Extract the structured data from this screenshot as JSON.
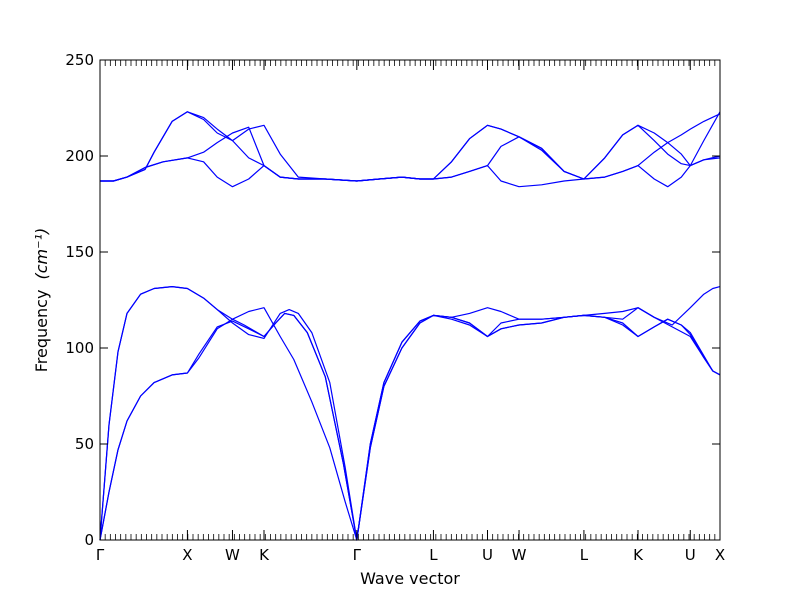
{
  "chart_data": {
    "type": "line",
    "xlabel": "Wave vector",
    "ylabel": "Frequency",
    "ylabel_unit": "(cm⁻¹)",
    "ylim": [
      0,
      250
    ],
    "yticks": [
      0,
      50,
      100,
      150,
      200,
      250
    ],
    "xlim": [
      0,
      6.88
    ],
    "x_high_symmetry": [
      {
        "label": "Γ",
        "x": 0.0
      },
      {
        "label": "X",
        "x": 0.97
      },
      {
        "label": "W",
        "x": 1.47
      },
      {
        "label": "K",
        "x": 1.82
      },
      {
        "label": "Γ",
        "x": 2.85
      },
      {
        "label": "L",
        "x": 3.7
      },
      {
        "label": "U",
        "x": 4.3
      },
      {
        "label": "W",
        "x": 4.65
      },
      {
        "label": "L",
        "x": 5.37
      },
      {
        "label": "K",
        "x": 5.97
      },
      {
        "label": "U",
        "x": 6.55
      },
      {
        "label": "X",
        "x": 6.88
      }
    ],
    "color": "#0000ff",
    "grid": false,
    "series": [
      {
        "points": [
          [
            0,
            0
          ],
          [
            0.1,
            25
          ],
          [
            0.2,
            47
          ],
          [
            0.3,
            62
          ],
          [
            0.45,
            75
          ],
          [
            0.6,
            82
          ],
          [
            0.8,
            86
          ],
          [
            0.97,
            87
          ],
          [
            1.1,
            95
          ],
          [
            1.3,
            110
          ],
          [
            1.47,
            115
          ],
          [
            1.6,
            112
          ],
          [
            1.82,
            106
          ],
          [
            1.95,
            113
          ],
          [
            2.05,
            118
          ],
          [
            2.15,
            117
          ],
          [
            2.3,
            108
          ],
          [
            2.5,
            85
          ],
          [
            2.7,
            40
          ],
          [
            2.85,
            0
          ],
          [
            3.0,
            48
          ],
          [
            3.15,
            80
          ],
          [
            3.35,
            100
          ],
          [
            3.55,
            113
          ],
          [
            3.7,
            117
          ],
          [
            3.9,
            116
          ],
          [
            4.1,
            113
          ],
          [
            4.3,
            106
          ],
          [
            4.45,
            110
          ],
          [
            4.65,
            112
          ],
          [
            4.9,
            113
          ],
          [
            5.15,
            116
          ],
          [
            5.37,
            117
          ],
          [
            5.6,
            116
          ],
          [
            5.8,
            112
          ],
          [
            5.97,
            106
          ],
          [
            6.15,
            111
          ],
          [
            6.3,
            115
          ],
          [
            6.45,
            112
          ],
          [
            6.55,
            108
          ],
          [
            6.7,
            96
          ],
          [
            6.8,
            88
          ],
          [
            6.88,
            86
          ]
        ]
      },
      {
        "points": [
          [
            0,
            0
          ],
          [
            0.1,
            25
          ],
          [
            0.2,
            47
          ],
          [
            0.3,
            62
          ],
          [
            0.45,
            75
          ],
          [
            0.6,
            82
          ],
          [
            0.8,
            86
          ],
          [
            0.97,
            87
          ],
          [
            1.1,
            97
          ],
          [
            1.3,
            111
          ],
          [
            1.47,
            114
          ],
          [
            1.65,
            110
          ],
          [
            1.82,
            106
          ],
          [
            1.95,
            113
          ],
          [
            2.05,
            118
          ],
          [
            2.15,
            117
          ],
          [
            2.3,
            108
          ],
          [
            2.5,
            85
          ],
          [
            2.7,
            40
          ],
          [
            2.85,
            0
          ],
          [
            3.0,
            48
          ],
          [
            3.15,
            80
          ],
          [
            3.35,
            100
          ],
          [
            3.55,
            113
          ],
          [
            3.7,
            117
          ],
          [
            3.9,
            116
          ],
          [
            4.1,
            113
          ],
          [
            4.3,
            106
          ],
          [
            4.45,
            113
          ],
          [
            4.65,
            115
          ],
          [
            4.9,
            115
          ],
          [
            5.15,
            116
          ],
          [
            5.37,
            117
          ],
          [
            5.6,
            116
          ],
          [
            5.8,
            113
          ],
          [
            5.97,
            106
          ],
          [
            6.15,
            111
          ],
          [
            6.3,
            115
          ],
          [
            6.45,
            112
          ],
          [
            6.55,
            107
          ],
          [
            6.7,
            95
          ],
          [
            6.8,
            88
          ],
          [
            6.88,
            86
          ]
        ]
      },
      {
        "points": [
          [
            0,
            0
          ],
          [
            0.05,
            30
          ],
          [
            0.1,
            60
          ],
          [
            0.2,
            98
          ],
          [
            0.3,
            118
          ],
          [
            0.45,
            128
          ],
          [
            0.6,
            131
          ],
          [
            0.8,
            132
          ],
          [
            0.97,
            131
          ],
          [
            1.15,
            126
          ],
          [
            1.3,
            120
          ],
          [
            1.47,
            113
          ],
          [
            1.65,
            107
          ],
          [
            1.82,
            105
          ],
          [
            2.0,
            118
          ],
          [
            2.1,
            120
          ],
          [
            2.2,
            118
          ],
          [
            2.35,
            108
          ],
          [
            2.55,
            82
          ],
          [
            2.72,
            38
          ],
          [
            2.85,
            0
          ],
          [
            3.0,
            50
          ],
          [
            3.15,
            82
          ],
          [
            3.35,
            103
          ],
          [
            3.55,
            114
          ],
          [
            3.7,
            117
          ],
          [
            3.9,
            116
          ],
          [
            4.1,
            118
          ],
          [
            4.3,
            121
          ],
          [
            4.45,
            119
          ],
          [
            4.65,
            115
          ],
          [
            4.9,
            115
          ],
          [
            5.15,
            116
          ],
          [
            5.37,
            117
          ],
          [
            5.6,
            118
          ],
          [
            5.8,
            119
          ],
          [
            5.97,
            121
          ],
          [
            6.15,
            116
          ],
          [
            6.35,
            112
          ],
          [
            6.55,
            121
          ],
          [
            6.7,
            128
          ],
          [
            6.8,
            131
          ],
          [
            6.88,
            132
          ]
        ]
      },
      {
        "points": [
          [
            0,
            0
          ],
          [
            0.05,
            30
          ],
          [
            0.1,
            60
          ],
          [
            0.2,
            98
          ],
          [
            0.3,
            118
          ],
          [
            0.45,
            128
          ],
          [
            0.6,
            131
          ],
          [
            0.8,
            132
          ],
          [
            0.97,
            131
          ],
          [
            1.15,
            126
          ],
          [
            1.3,
            120
          ],
          [
            1.47,
            115
          ],
          [
            1.65,
            119
          ],
          [
            1.82,
            121
          ],
          [
            2.0,
            106
          ],
          [
            2.15,
            94
          ],
          [
            2.35,
            72
          ],
          [
            2.55,
            48
          ],
          [
            2.72,
            20
          ],
          [
            2.85,
            0
          ],
          [
            3.0,
            50
          ],
          [
            3.15,
            82
          ],
          [
            3.35,
            103
          ],
          [
            3.55,
            114
          ],
          [
            3.7,
            117
          ],
          [
            3.9,
            115
          ],
          [
            4.1,
            112
          ],
          [
            4.3,
            106
          ],
          [
            4.45,
            110
          ],
          [
            4.65,
            112
          ],
          [
            4.9,
            113
          ],
          [
            5.15,
            116
          ],
          [
            5.37,
            117
          ],
          [
            5.6,
            116
          ],
          [
            5.8,
            115
          ],
          [
            5.97,
            121
          ],
          [
            6.15,
            116
          ],
          [
            6.35,
            111
          ],
          [
            6.55,
            106
          ],
          [
            6.7,
            95
          ],
          [
            6.8,
            88
          ],
          [
            6.88,
            86
          ]
        ]
      },
      {
        "points": [
          [
            0,
            187
          ],
          [
            0.15,
            187
          ],
          [
            0.3,
            189
          ],
          [
            0.5,
            194
          ],
          [
            0.7,
            197
          ],
          [
            0.97,
            199
          ],
          [
            1.15,
            197
          ],
          [
            1.3,
            189
          ],
          [
            1.47,
            184
          ],
          [
            1.65,
            188
          ],
          [
            1.82,
            195
          ],
          [
            2.0,
            189
          ],
          [
            2.2,
            188
          ],
          [
            2.5,
            188
          ],
          [
            2.85,
            187
          ],
          [
            3.1,
            188
          ],
          [
            3.35,
            189
          ],
          [
            3.55,
            188
          ],
          [
            3.7,
            188
          ],
          [
            3.9,
            189
          ],
          [
            4.1,
            192
          ],
          [
            4.3,
            195
          ],
          [
            4.45,
            187
          ],
          [
            4.65,
            184
          ],
          [
            4.9,
            185
          ],
          [
            5.15,
            187
          ],
          [
            5.37,
            188
          ],
          [
            5.6,
            189
          ],
          [
            5.8,
            192
          ],
          [
            5.97,
            195
          ],
          [
            6.15,
            188
          ],
          [
            6.3,
            184
          ],
          [
            6.45,
            189
          ],
          [
            6.55,
            195
          ],
          [
            6.7,
            198
          ],
          [
            6.88,
            199
          ]
        ]
      },
      {
        "points": [
          [
            0,
            187
          ],
          [
            0.15,
            187
          ],
          [
            0.3,
            189
          ],
          [
            0.5,
            194
          ],
          [
            0.7,
            197
          ],
          [
            0.97,
            199
          ],
          [
            1.15,
            202
          ],
          [
            1.3,
            207
          ],
          [
            1.47,
            212
          ],
          [
            1.65,
            215
          ],
          [
            1.82,
            195
          ],
          [
            2.0,
            189
          ],
          [
            2.2,
            188
          ],
          [
            2.5,
            188
          ],
          [
            2.85,
            187
          ],
          [
            3.1,
            188
          ],
          [
            3.35,
            189
          ],
          [
            3.55,
            188
          ],
          [
            3.7,
            188
          ],
          [
            3.9,
            189
          ],
          [
            4.1,
            192
          ],
          [
            4.3,
            195
          ],
          [
            4.45,
            205
          ],
          [
            4.65,
            210
          ],
          [
            4.9,
            203
          ],
          [
            5.15,
            192
          ],
          [
            5.37,
            188
          ],
          [
            5.6,
            189
          ],
          [
            5.8,
            192
          ],
          [
            5.97,
            195
          ],
          [
            6.15,
            202
          ],
          [
            6.3,
            207
          ],
          [
            6.45,
            211
          ],
          [
            6.55,
            214
          ],
          [
            6.7,
            218
          ],
          [
            6.88,
            222
          ]
        ]
      },
      {
        "points": [
          [
            0,
            187
          ],
          [
            0.15,
            187
          ],
          [
            0.3,
            189
          ],
          [
            0.5,
            193
          ],
          [
            0.6,
            202
          ],
          [
            0.8,
            218
          ],
          [
            0.97,
            223
          ],
          [
            1.15,
            220
          ],
          [
            1.3,
            214
          ],
          [
            1.47,
            208
          ],
          [
            1.65,
            199
          ],
          [
            1.82,
            195
          ],
          [
            2.0,
            189
          ],
          [
            2.2,
            188
          ],
          [
            2.5,
            188
          ],
          [
            2.85,
            187
          ],
          [
            3.1,
            188
          ],
          [
            3.35,
            189
          ],
          [
            3.55,
            188
          ],
          [
            3.7,
            188
          ],
          [
            3.9,
            197
          ],
          [
            4.1,
            209
          ],
          [
            4.3,
            216
          ],
          [
            4.45,
            214
          ],
          [
            4.65,
            210
          ],
          [
            4.9,
            204
          ],
          [
            5.15,
            192
          ],
          [
            5.37,
            188
          ],
          [
            5.6,
            199
          ],
          [
            5.8,
            211
          ],
          [
            5.97,
            216
          ],
          [
            6.15,
            212
          ],
          [
            6.3,
            207
          ],
          [
            6.45,
            201
          ],
          [
            6.55,
            195
          ],
          [
            6.7,
            198
          ],
          [
            6.88,
            200
          ]
        ]
      },
      {
        "points": [
          [
            0,
            187
          ],
          [
            0.15,
            187
          ],
          [
            0.3,
            189
          ],
          [
            0.5,
            193
          ],
          [
            0.6,
            202
          ],
          [
            0.8,
            218
          ],
          [
            0.97,
            223
          ],
          [
            1.15,
            219
          ],
          [
            1.3,
            212
          ],
          [
            1.47,
            208
          ],
          [
            1.65,
            214
          ],
          [
            1.82,
            216
          ],
          [
            2.0,
            201
          ],
          [
            2.2,
            189
          ],
          [
            2.5,
            188
          ],
          [
            2.85,
            187
          ],
          [
            3.1,
            188
          ],
          [
            3.35,
            189
          ],
          [
            3.55,
            188
          ],
          [
            3.7,
            188
          ],
          [
            3.9,
            197
          ],
          [
            4.1,
            209
          ],
          [
            4.3,
            216
          ],
          [
            4.45,
            214
          ],
          [
            4.65,
            210
          ],
          [
            4.9,
            204
          ],
          [
            5.15,
            192
          ],
          [
            5.37,
            188
          ],
          [
            5.6,
            199
          ],
          [
            5.8,
            211
          ],
          [
            5.97,
            216
          ],
          [
            6.15,
            208
          ],
          [
            6.3,
            201
          ],
          [
            6.45,
            196
          ],
          [
            6.55,
            195
          ],
          [
            6.7,
            208
          ],
          [
            6.88,
            223
          ]
        ]
      }
    ]
  }
}
